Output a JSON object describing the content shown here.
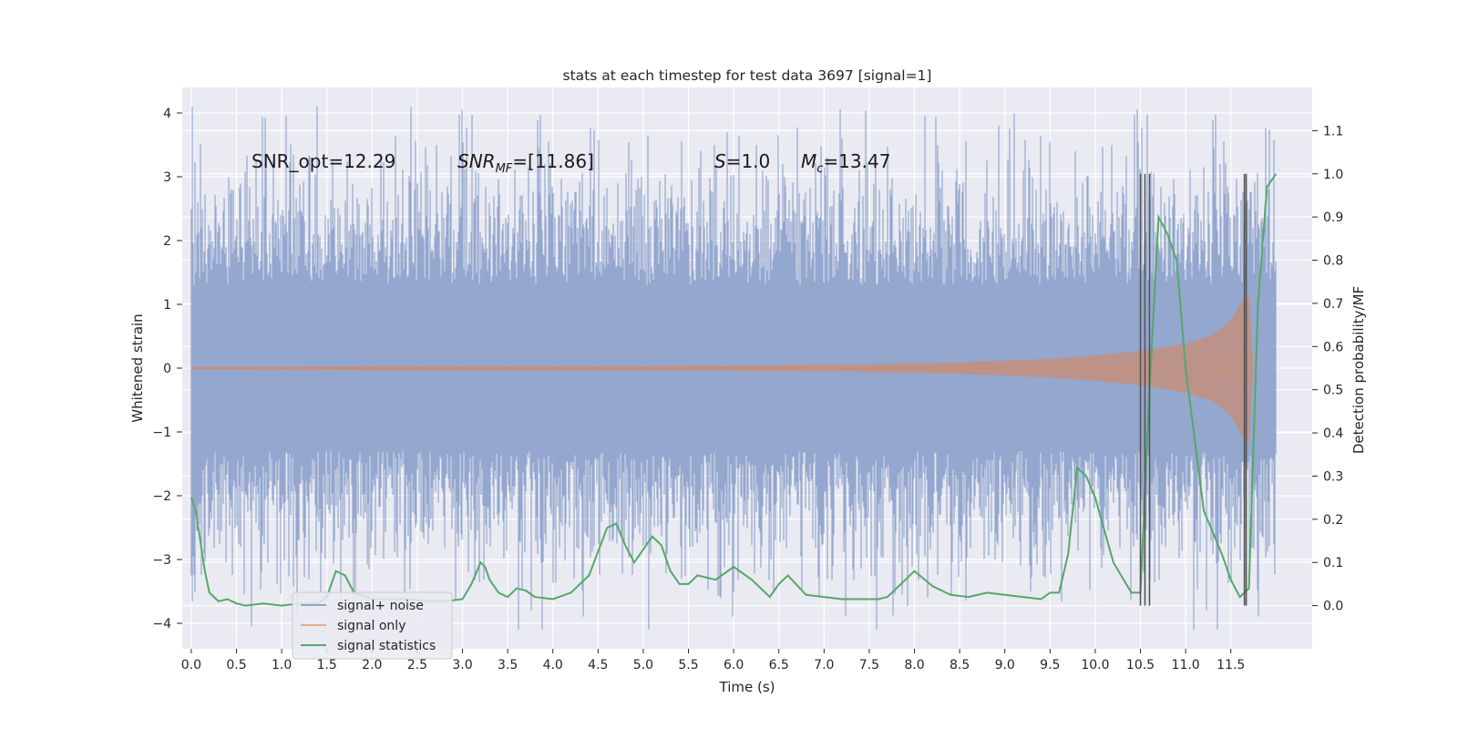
{
  "chart_data": {
    "type": "line",
    "title": "stats at each timestep for test data 3697 [signal=1]",
    "xlabel": "Time (s)",
    "ylabel": "Whitened strain",
    "y2label": "Detection probability/MF",
    "xlim": [
      -0.1,
      12.4
    ],
    "ylim": [
      -4.4,
      4.4
    ],
    "y2lim": [
      -0.1,
      1.2
    ],
    "xticks": [
      "0.0",
      "0.5",
      "1.0",
      "1.5",
      "2.0",
      "2.5",
      "3.0",
      "3.5",
      "4.0",
      "4.5",
      "5.0",
      "5.5",
      "6.0",
      "6.5",
      "7.0",
      "7.5",
      "8.0",
      "8.5",
      "9.0",
      "9.5",
      "10.0",
      "10.5",
      "11.0",
      "11.5"
    ],
    "yticks": [
      "4",
      "3",
      "2",
      "1",
      "0",
      "−1",
      "−2",
      "−3",
      "−4"
    ],
    "y2ticks": [
      "1.1",
      "1.0",
      "0.9",
      "0.8",
      "0.7",
      "0.6",
      "0.5",
      "0.4",
      "0.3",
      "0.2",
      "0.1",
      "0.0"
    ],
    "grid": true,
    "legend_position": "lower-left",
    "colors": {
      "noise": "#8fa3cc",
      "signal": "#dd8452",
      "stats": "#55a868",
      "vline": "#555555",
      "panel": "#eaeaf2"
    },
    "annotations": {
      "snr_opt": "SNR_opt=12.29",
      "snr_mf_main": "SNR",
      "snr_mf_sub": "MF",
      "snr_mf_value": "=[11.86]",
      "s_main": "S",
      "s_value": "=1.0",
      "mc_main": "M",
      "mc_sub": "c",
      "mc_value": "=13.47"
    },
    "series": [
      {
        "name": "signal+ noise",
        "axis": "left",
        "t_range": [
          0.0,
          12.0
        ],
        "rms": 0.9,
        "peak_max": 4.1,
        "peak_min": -4.1
      },
      {
        "name": "signal only",
        "axis": "left",
        "t_range": [
          0.0,
          11.75
        ],
        "envelope": [
          [
            0.0,
            0.02
          ],
          [
            2.0,
            0.03
          ],
          [
            5.0,
            0.03
          ],
          [
            7.5,
            0.06
          ],
          [
            8.5,
            0.09
          ],
          [
            9.5,
            0.15
          ],
          [
            10.0,
            0.2
          ],
          [
            10.5,
            0.27
          ],
          [
            11.0,
            0.38
          ],
          [
            11.3,
            0.52
          ],
          [
            11.5,
            0.75
          ],
          [
            11.6,
            1.0
          ],
          [
            11.7,
            1.2
          ],
          [
            11.75,
            0.0
          ]
        ]
      },
      {
        "name": "signal statistics",
        "axis": "right",
        "x": [
          0.0,
          0.05,
          0.1,
          0.15,
          0.2,
          0.3,
          0.4,
          0.5,
          0.6,
          0.8,
          1.0,
          1.2,
          1.4,
          1.5,
          1.55,
          1.6,
          1.7,
          1.8,
          2.0,
          2.2,
          2.4,
          2.6,
          2.8,
          3.0,
          3.1,
          3.2,
          3.25,
          3.3,
          3.4,
          3.5,
          3.6,
          3.7,
          3.8,
          4.0,
          4.2,
          4.4,
          4.6,
          4.7,
          4.8,
          4.9,
          5.0,
          5.1,
          5.2,
          5.3,
          5.4,
          5.5,
          5.6,
          5.8,
          6.0,
          6.2,
          6.4,
          6.5,
          6.6,
          6.8,
          7.0,
          7.2,
          7.4,
          7.6,
          7.7,
          7.8,
          8.0,
          8.2,
          8.4,
          8.6,
          8.8,
          9.0,
          9.2,
          9.4,
          9.5,
          9.6,
          9.7,
          9.8,
          9.9,
          10.0,
          10.2,
          10.4,
          10.5,
          10.6,
          10.7,
          10.8,
          10.9,
          11.0,
          11.2,
          11.4,
          11.5,
          11.6,
          11.7,
          11.8,
          11.9,
          12.0
        ],
        "y": [
          0.25,
          0.22,
          0.15,
          0.08,
          0.03,
          0.01,
          0.015,
          0.005,
          0.0,
          0.005,
          0.0,
          0.005,
          0.005,
          0.02,
          0.05,
          0.08,
          0.07,
          0.03,
          0.015,
          0.015,
          0.015,
          0.01,
          0.01,
          0.015,
          0.05,
          0.1,
          0.09,
          0.06,
          0.03,
          0.02,
          0.04,
          0.035,
          0.02,
          0.015,
          0.03,
          0.07,
          0.18,
          0.19,
          0.14,
          0.1,
          0.13,
          0.16,
          0.14,
          0.08,
          0.05,
          0.05,
          0.07,
          0.06,
          0.09,
          0.06,
          0.02,
          0.05,
          0.07,
          0.025,
          0.02,
          0.015,
          0.015,
          0.015,
          0.02,
          0.04,
          0.08,
          0.045,
          0.025,
          0.02,
          0.03,
          0.025,
          0.02,
          0.015,
          0.03,
          0.03,
          0.12,
          0.32,
          0.3,
          0.25,
          0.1,
          0.03,
          0.03,
          0.5,
          0.9,
          0.86,
          0.8,
          0.55,
          0.22,
          0.12,
          0.06,
          0.02,
          0.04,
          0.7,
          0.97,
          1.0
        ]
      }
    ],
    "vlines_x": [
      10.5,
      10.55,
      10.6,
      11.65,
      11.67
    ]
  }
}
